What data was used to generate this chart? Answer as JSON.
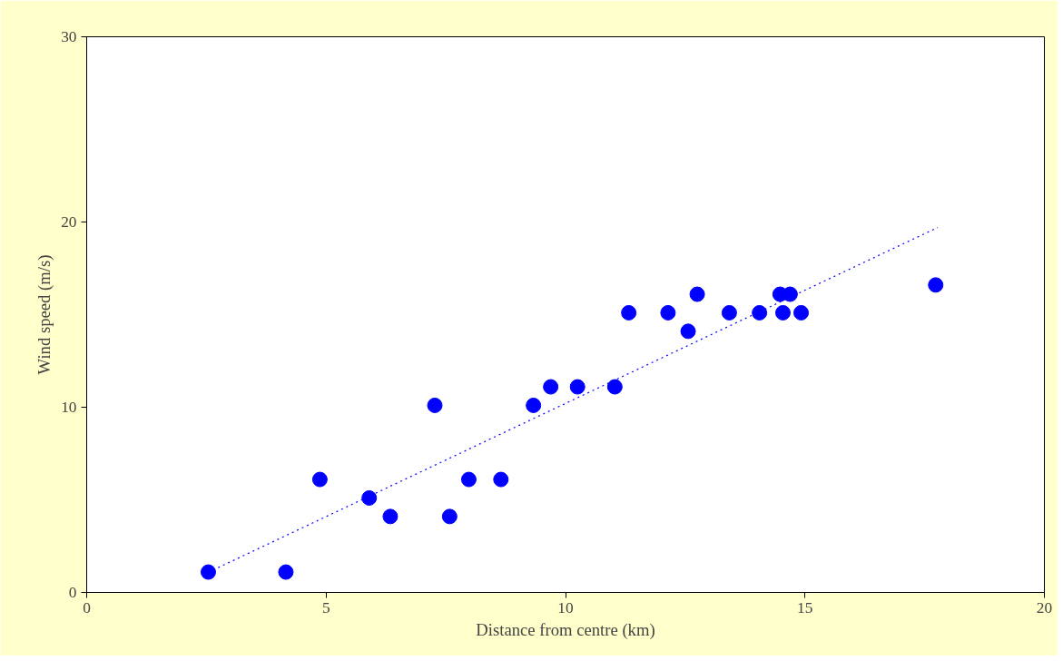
{
  "chart_data": {
    "type": "scatter",
    "xlabel": "Distance from centre (km)",
    "ylabel": "Wind speed (m/s)",
    "xlim": [
      0,
      20
    ],
    "ylim": [
      0,
      30
    ],
    "xticks": [
      0,
      5,
      10,
      15,
      20
    ],
    "yticks": [
      0,
      10,
      20,
      30
    ],
    "grid": false,
    "marker": "circle",
    "series": [
      {
        "color": "#0000ff",
        "x": [
          2.54,
          4.16,
          4.87,
          5.9,
          6.34,
          7.27,
          7.58,
          7.98,
          8.65,
          9.33,
          9.69,
          10.25,
          11.03,
          11.32,
          12.14,
          12.56,
          12.75,
          13.42,
          14.05,
          14.48,
          14.54,
          14.69,
          14.92,
          17.73
        ],
        "values": [
          1.1,
          1.1,
          6.1,
          5.1,
          4.1,
          10.1,
          4.1,
          6.1,
          6.1,
          10.1,
          11.1,
          11.1,
          11.1,
          15.1,
          15.1,
          14.1,
          16.1,
          15.1,
          15.1,
          16.1,
          15.1,
          16.1,
          15.1,
          16.6
        ]
      },
      {
        "type": "line",
        "color": "#0000ff",
        "marker": "none",
        "line_style": "dotted",
        "x": [
          2.54,
          17.77
        ],
        "values": [
          1.09,
          19.7
        ]
      }
    ]
  }
}
